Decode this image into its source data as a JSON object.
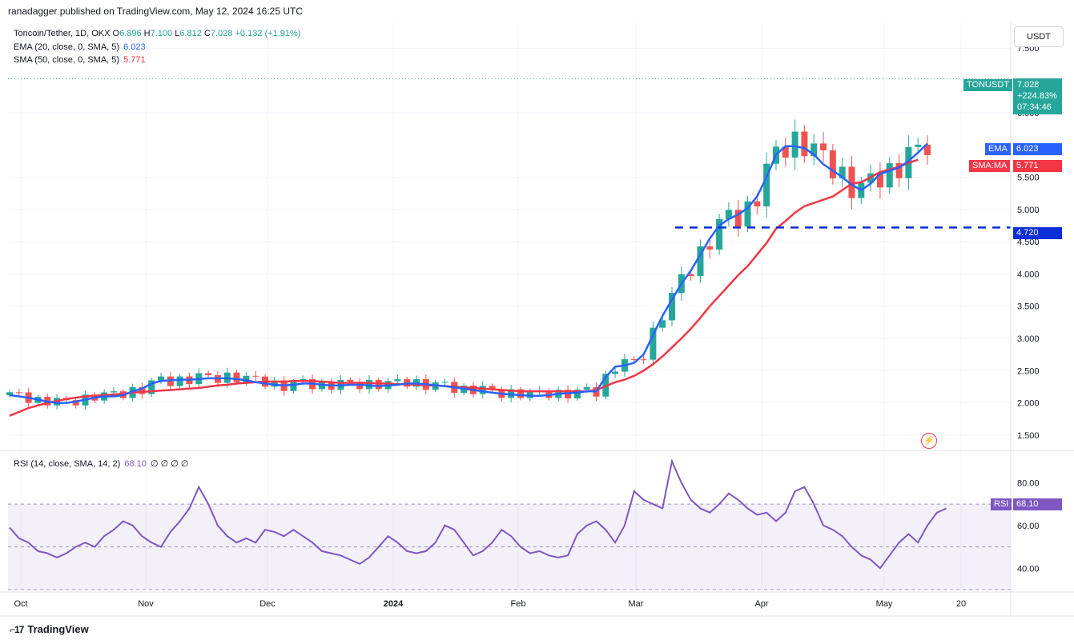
{
  "header": {
    "publisher": "ranadagger published on TradingView.com, May 12, 2024 16:25 UTC",
    "symbol": "Toncoin/Tether, 1D, OKX",
    "ohlc": {
      "o_label": "O",
      "o": "6.896",
      "h_label": "H",
      "h": "7.100",
      "l_label": "L",
      "l": "6.812",
      "c_label": "C",
      "c": "7.028",
      "chg": "+0.132 (+1.91%)"
    },
    "ema_label": "EMA (20, close, 0, SMA, 5)",
    "ema_value": "6.023",
    "sma_label": "SMA (50, close, 0, SMA, 5)",
    "sma_value": "5.771",
    "rsi_label": "RSI (14, close, SMA, 14, 2)",
    "rsi_value": "68.10",
    "rsi_extra": "∅ ∅ ∅ ∅"
  },
  "unit_button": "USDT",
  "logo_text": "TradingView",
  "tags": {
    "price_name": "TONUSDT",
    "price_value": "7.028",
    "price_change": "+224.83%",
    "countdown": "07:34:46",
    "ema_name": "EMA",
    "ema_value": "6.023",
    "sma_name": "SMA:MA",
    "sma_value": "5.771",
    "level_value": "4.720",
    "rsi_name": "RSI",
    "rsi_value": "68.10"
  },
  "colors": {
    "up": "#26a69a",
    "down": "#ef5350",
    "ema": "#2962ff",
    "sma": "#f23645",
    "rsi": "#7e57c2",
    "level": "#0c2ed8"
  },
  "chart_data": [
    {
      "type": "candlestick",
      "title": "Toncoin/Tether, 1D, OKX",
      "y_ticks": [
        "7.500",
        "6.500",
        "5.500",
        "5.000",
        "4.500",
        "4.000",
        "3.500",
        "3.000",
        "2.500",
        "2.000",
        "1.500"
      ],
      "x_ticks": [
        "Oct",
        "Nov",
        "Dec",
        "2024",
        "Feb",
        "Mar",
        "Apr",
        "May",
        "20"
      ],
      "ylim": [
        1.3,
        7.9
      ],
      "last_close": 7.028,
      "horizontal_level": 4.72,
      "series": [
        {
          "name": "EMA (20, close, 0, SMA, 5)",
          "values": [
            2.12,
            2.1,
            2.08,
            2.05,
            2.02,
            2.0,
            2.0,
            2.02,
            2.05,
            2.08,
            2.1,
            2.1,
            2.12,
            2.18,
            2.22,
            2.3,
            2.34,
            2.35,
            2.36,
            2.36,
            2.37,
            2.38,
            2.38,
            2.38,
            2.37,
            2.35,
            2.32,
            2.3,
            2.28,
            2.27,
            2.28,
            2.3,
            2.3,
            2.28,
            2.27,
            2.27,
            2.28,
            2.28,
            2.27,
            2.26,
            2.27,
            2.28,
            2.3,
            2.3,
            2.29,
            2.27,
            2.26,
            2.24,
            2.22,
            2.2,
            2.18,
            2.16,
            2.14,
            2.13,
            2.12,
            2.11,
            2.11,
            2.12,
            2.14,
            2.15,
            2.16,
            2.18,
            2.18,
            2.4,
            2.56,
            2.58,
            2.62,
            2.75,
            3.05,
            3.35,
            3.6,
            3.85,
            4.05,
            4.3,
            4.55,
            4.75,
            4.85,
            4.92,
            5.02,
            5.2,
            5.5,
            5.85,
            5.98,
            5.98,
            5.95,
            5.85,
            5.7,
            5.6,
            5.5,
            5.38,
            5.3,
            5.4,
            5.55,
            5.6,
            5.65,
            5.75,
            5.88,
            6.02
          ]
        },
        {
          "name": "SMA (50, close, 0, SMA, 5)",
          "values": [
            1.8,
            1.86,
            1.92,
            1.96,
            2.0,
            2.03,
            2.06,
            2.08,
            2.1,
            2.11,
            2.12,
            2.13,
            2.14,
            2.16,
            2.17,
            2.18,
            2.19,
            2.2,
            2.21,
            2.22,
            2.23,
            2.25,
            2.27,
            2.28,
            2.3,
            2.31,
            2.32,
            2.33,
            2.33,
            2.33,
            2.34,
            2.34,
            2.34,
            2.33,
            2.32,
            2.31,
            2.31,
            2.31,
            2.31,
            2.3,
            2.3,
            2.29,
            2.29,
            2.28,
            2.27,
            2.27,
            2.26,
            2.25,
            2.24,
            2.23,
            2.22,
            2.21,
            2.2,
            2.19,
            2.18,
            2.18,
            2.18,
            2.18,
            2.18,
            2.18,
            2.18,
            2.18,
            2.2,
            2.26,
            2.32,
            2.36,
            2.42,
            2.5,
            2.6,
            2.72,
            2.86,
            3.0,
            3.15,
            3.32,
            3.5,
            3.66,
            3.82,
            3.98,
            4.12,
            4.3,
            4.48,
            4.7,
            4.82,
            4.95,
            5.05,
            5.1,
            5.15,
            5.2,
            5.3,
            5.4,
            5.42,
            5.5,
            5.58,
            5.62,
            5.66,
            5.72,
            5.77
          ]
        }
      ]
    },
    {
      "type": "line",
      "title": "RSI (14, close, SMA, 14, 2)",
      "y_ticks": [
        "80.00",
        "60.00",
        "40.00"
      ],
      "ylim": [
        30,
        94
      ],
      "band": [
        30,
        70
      ],
      "last_value": 68.1,
      "series": [
        {
          "name": "RSI (14, close, SMA, 14, 2)",
          "values": [
            59,
            54,
            52,
            48,
            47,
            45,
            47,
            50,
            52,
            50,
            55,
            58,
            62,
            60,
            55,
            52,
            50,
            57,
            62,
            68,
            78,
            70,
            60,
            55,
            52,
            54,
            52,
            58,
            57,
            55,
            58,
            55,
            52,
            48,
            47,
            46,
            44,
            42,
            45,
            50,
            55,
            52,
            48,
            47,
            48,
            52,
            60,
            58,
            52,
            46,
            48,
            52,
            58,
            55,
            50,
            47,
            48,
            46,
            45,
            46,
            56,
            60,
            62,
            58,
            52,
            60,
            76,
            72,
            70,
            68,
            90,
            80,
            72,
            68,
            66,
            70,
            75,
            72,
            68,
            65,
            66,
            62,
            66,
            76,
            78,
            70,
            60,
            58,
            55,
            50,
            46,
            44,
            40,
            46,
            52,
            56,
            52,
            60,
            66,
            68
          ]
        }
      ]
    }
  ]
}
